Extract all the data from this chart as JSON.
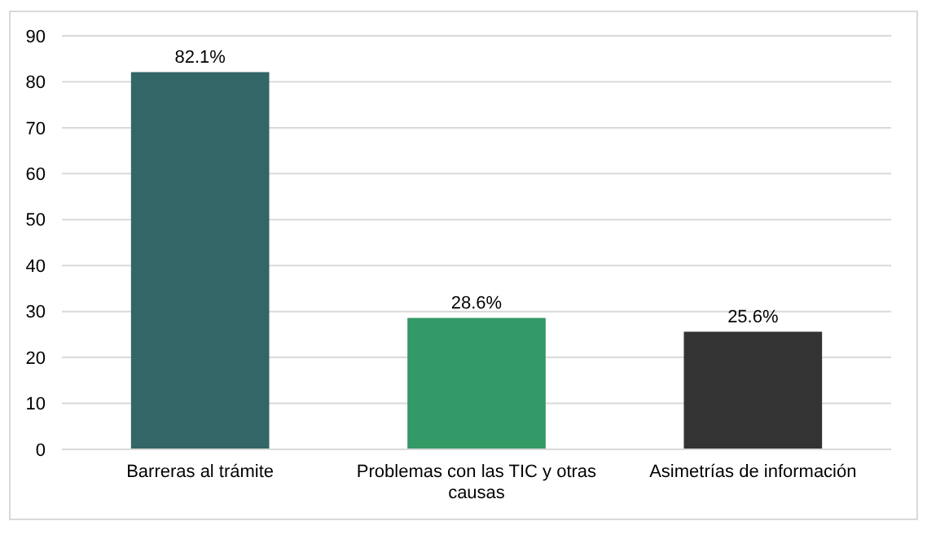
{
  "chart_data": {
    "type": "bar",
    "categories": [
      "Barreras al trámite",
      "Problemas con las TIC y otras causas",
      "Asimetrías de información"
    ],
    "values": [
      82.1,
      28.6,
      25.6
    ],
    "colors": [
      "#336666",
      "#339966",
      "#333333"
    ],
    "value_labels": [
      "82.1%",
      "28.6%",
      "25.6%"
    ],
    "ylim": [
      0,
      90
    ],
    "yticks": [
      0,
      10,
      20,
      30,
      40,
      50,
      60,
      70,
      80,
      90
    ],
    "grid": "y"
  }
}
